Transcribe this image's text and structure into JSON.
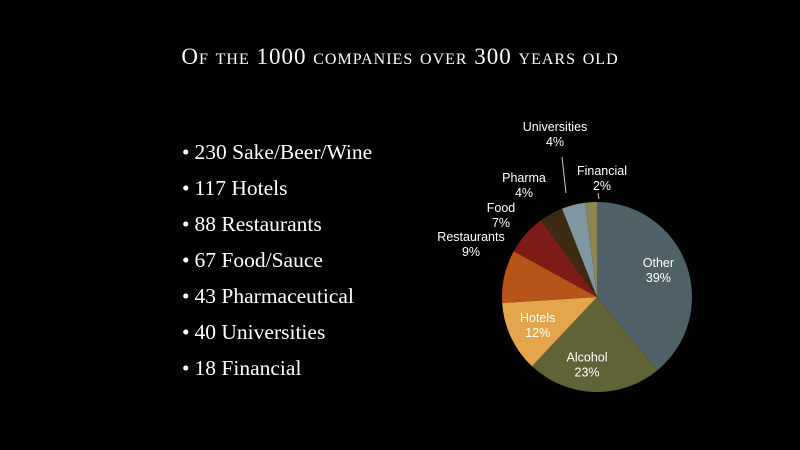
{
  "slide": {
    "title": "Of the 1000 companies over 300 years old",
    "bullets": [
      "230 Sake/Beer/Wine",
      "117 Hotels",
      "88 Restaurants",
      "67 Food/Sauce",
      "43 Pharmaceutical",
      "40 Universities",
      "18 Financial"
    ]
  },
  "chart_data": {
    "type": "pie",
    "slices": [
      {
        "label": "Other",
        "value": 39,
        "display": "39%",
        "color": "#4f6166"
      },
      {
        "label": "Alcohol",
        "value": 23,
        "display": "23%",
        "color": "#5f6335"
      },
      {
        "label": "Hotels",
        "value": 12,
        "display": "12%",
        "color": "#e5a54a"
      },
      {
        "label": "Restaurants",
        "value": 9,
        "display": "9%",
        "color": "#b8541a"
      },
      {
        "label": "Food",
        "value": 7,
        "display": "7%",
        "color": "#7d1c16"
      },
      {
        "label": "Pharma",
        "value": 4,
        "display": "4%",
        "color": "#3d2a12"
      },
      {
        "label": "Universities",
        "value": 4,
        "display": "4%",
        "color": "#7f97a0"
      },
      {
        "label": "Financial",
        "value": 2,
        "display": "2%",
        "color": "#8d8458"
      }
    ]
  }
}
